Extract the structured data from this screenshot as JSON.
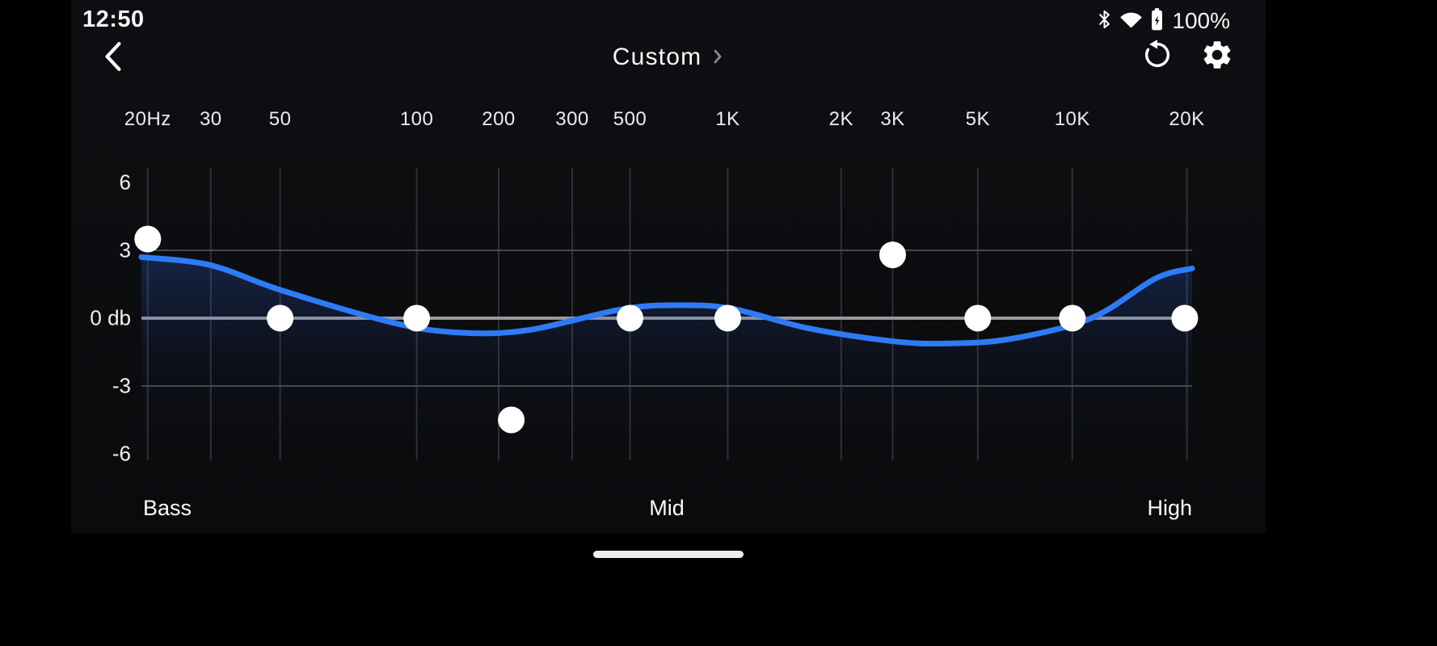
{
  "status_bar": {
    "time": "12:50",
    "battery_percent": "100%",
    "icons": [
      "bluetooth-icon",
      "wifi-icon",
      "battery-charging-icon"
    ]
  },
  "header": {
    "back_icon": "back-chevron-icon",
    "title": "Custom",
    "title_chevron_icon": "chevron-right-icon",
    "actions": [
      "reset-icon",
      "settings-gear-icon"
    ]
  },
  "chart_data": {
    "type": "line",
    "x_axis": {
      "scale": "log",
      "ticks": [
        {
          "label": "20Hz",
          "x": 0.006
        },
        {
          "label": "30",
          "x": 0.066
        },
        {
          "label": "50",
          "x": 0.132
        },
        {
          "label": "100",
          "x": 0.262
        },
        {
          "label": "200",
          "x": 0.34
        },
        {
          "label": "300",
          "x": 0.41
        },
        {
          "label": "500",
          "x": 0.465
        },
        {
          "label": "1K",
          "x": 0.558
        },
        {
          "label": "2K",
          "x": 0.666
        },
        {
          "label": "3K",
          "x": 0.715
        },
        {
          "label": "5K",
          "x": 0.796
        },
        {
          "label": "10K",
          "x": 0.886
        },
        {
          "label": "20K",
          "x": 0.995
        }
      ]
    },
    "y_axis": {
      "unit": "db",
      "ticks": [
        {
          "label": "6",
          "db": 6
        },
        {
          "label": "3",
          "db": 3
        },
        {
          "label": "0 db",
          "db": 0
        },
        {
          "label": "-3",
          "db": -3
        },
        {
          "label": "-6",
          "db": -6
        }
      ],
      "h_gridlines_db": [
        3,
        0,
        -3
      ],
      "ylim": [
        -6.3,
        6.6
      ]
    },
    "bands": [
      {
        "freq": "20Hz",
        "x": 0.006,
        "gain_db": 3.5
      },
      {
        "freq": "50",
        "x": 0.132,
        "gain_db": 0
      },
      {
        "freq": "100",
        "x": 0.262,
        "gain_db": 0
      },
      {
        "freq": "200",
        "x": 0.352,
        "gain_db": -4.5
      },
      {
        "freq": "500",
        "x": 0.465,
        "gain_db": 0
      },
      {
        "freq": "1K",
        "x": 0.558,
        "gain_db": 0
      },
      {
        "freq": "3K",
        "x": 0.715,
        "gain_db": 2.8
      },
      {
        "freq": "5K",
        "x": 0.796,
        "gain_db": 0
      },
      {
        "freq": "10K",
        "x": 0.886,
        "gain_db": 0
      },
      {
        "freq": "20K",
        "x": 0.993,
        "gain_db": 0
      }
    ],
    "response_curve": [
      [
        0.0,
        2.7
      ],
      [
        0.065,
        2.35
      ],
      [
        0.132,
        1.25
      ],
      [
        0.235,
        -0.15
      ],
      [
        0.296,
        -0.62
      ],
      [
        0.365,
        -0.55
      ],
      [
        0.458,
        0.4
      ],
      [
        0.512,
        0.57
      ],
      [
        0.562,
        0.42
      ],
      [
        0.635,
        -0.45
      ],
      [
        0.715,
        -1.02
      ],
      [
        0.765,
        -1.12
      ],
      [
        0.827,
        -0.92
      ],
      [
        0.904,
        0.0
      ],
      [
        0.965,
        1.75
      ],
      [
        1.0,
        2.2
      ]
    ],
    "zone_labels": {
      "left": "Bass",
      "center": "Mid",
      "right": "High"
    },
    "legend": false,
    "colors": {
      "curve": "#2e7bf6",
      "handle": "#ffffff",
      "grid_vertical": "#2e3035",
      "grid_horizontal": "#45474c",
      "zero_line": "#97999d",
      "fill": "#2a5bd0"
    }
  }
}
